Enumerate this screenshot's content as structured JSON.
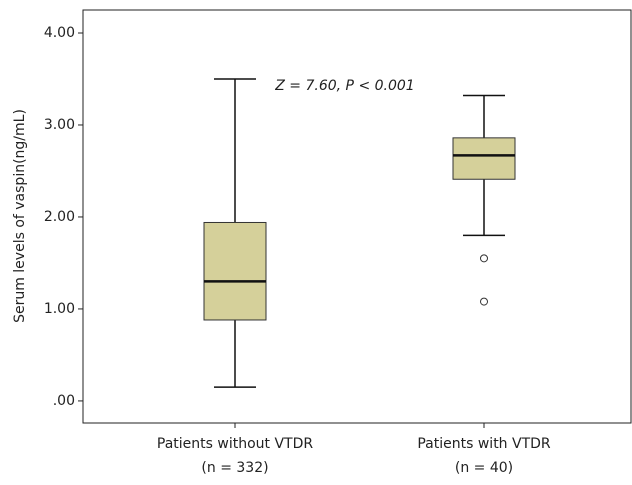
{
  "chart_data": {
    "type": "box",
    "y_label": "Serum levels of vaspin(ng/mL)",
    "annotation": "Z = 7.60, P < 0.001",
    "categories": [
      "Patients without VTDR",
      "Patients with VTDR"
    ],
    "category_sublabels": [
      "(n = 332)",
      "(n = 40)"
    ],
    "color": "#d5d09a",
    "boxes": [
      {
        "whislo": 0.15,
        "q1": 0.88,
        "med": 1.3,
        "q3": 1.94,
        "whishi": 3.5,
        "fliers": []
      },
      {
        "whislo": 1.8,
        "q1": 2.41,
        "med": 2.67,
        "q3": 2.86,
        "whishi": 3.32,
        "fliers": [
          1.55,
          1.08
        ]
      }
    ],
    "ylim": [
      -0.24,
      4.25
    ],
    "yticks": [
      {
        "value": 0,
        "label": ".00"
      },
      {
        "value": 1,
        "label": "1.00"
      },
      {
        "value": 2,
        "label": "2.00"
      },
      {
        "value": 3,
        "label": "3.00"
      },
      {
        "value": 4,
        "label": "4.00"
      }
    ]
  }
}
